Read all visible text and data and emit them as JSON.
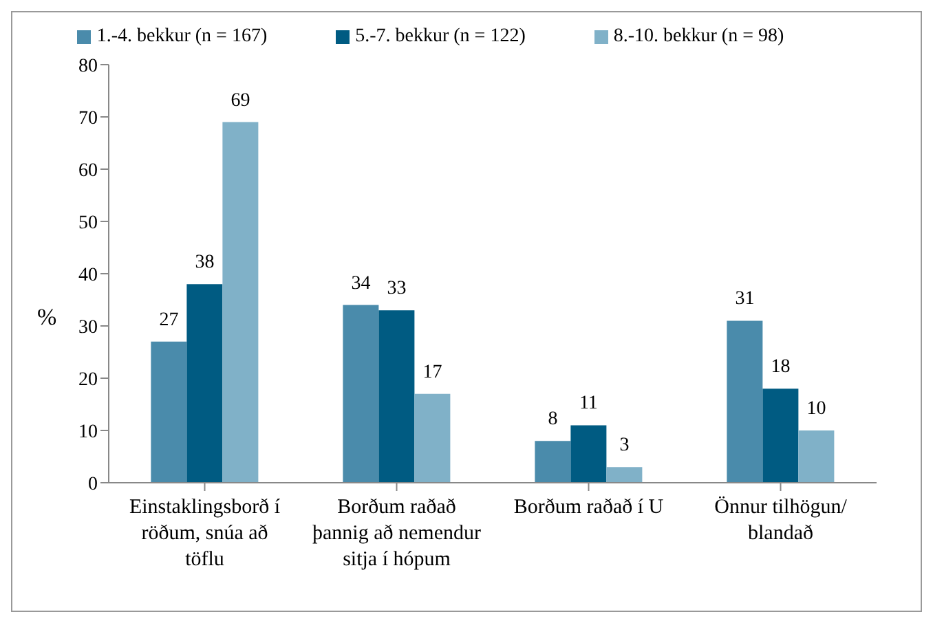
{
  "chart_data": {
    "type": "bar",
    "categories": [
      "Einstaklingsborð í röðum, snúa að töflu",
      "Borðum raðað þannig að nemendur sitja í hópum",
      "Borðum raðað í U",
      "Önnur tilhögun/ blandað"
    ],
    "series": [
      {
        "name": "1.-4. bekkur (n = 167)",
        "color": "#4a8bab",
        "values": [
          27,
          34,
          8,
          31
        ]
      },
      {
        "name": "5.-7. bekkur (n = 122)",
        "color": "#005b82",
        "values": [
          38,
          33,
          11,
          18
        ]
      },
      {
        "name": "8.-10. bekkur (n = 98)",
        "color": "#80b1c8",
        "values": [
          69,
          17,
          3,
          10
        ]
      }
    ],
    "ylabel": "%",
    "ylim": [
      0,
      80
    ],
    "yticks": [
      0,
      10,
      20,
      30,
      40,
      50,
      60,
      70,
      80
    ],
    "legend": "top",
    "data_labels": true
  }
}
